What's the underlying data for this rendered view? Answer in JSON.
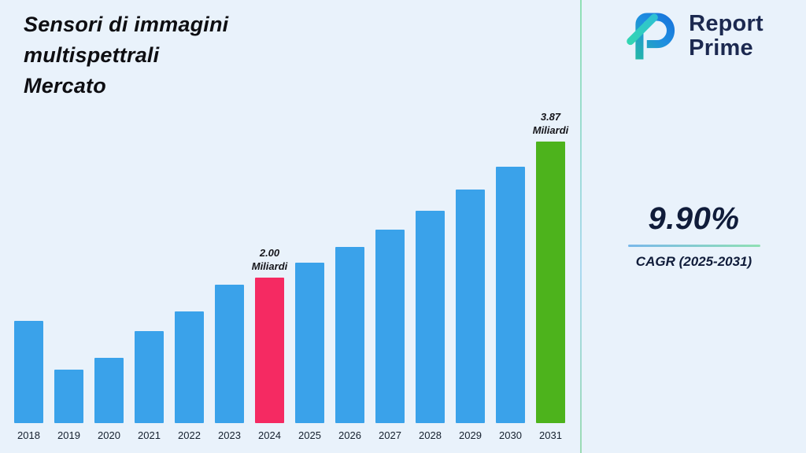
{
  "title": "Sensori di immagini multispettrali Mercato",
  "logo": {
    "name": "Report Prime",
    "line1": "Report",
    "line2": "Prime"
  },
  "stat": {
    "value": "9.90%",
    "label": "CAGR (2025-2031)"
  },
  "chart_data": {
    "type": "bar",
    "title": "Sensori di immagini multispettrali Mercato",
    "unit": "Miliardi",
    "categories": [
      "2018",
      "2019",
      "2020",
      "2021",
      "2022",
      "2023",
      "2024",
      "2025",
      "2026",
      "2027",
      "2028",
      "2029",
      "2030",
      "2031"
    ],
    "values": [
      1.4,
      0.74,
      0.9,
      1.26,
      1.53,
      1.9,
      2.0,
      2.2,
      2.42,
      2.66,
      2.92,
      3.21,
      3.52,
      3.87
    ],
    "ylim": [
      0,
      3.87
    ],
    "grid": false,
    "legend": "none",
    "bar_colors": {
      "default": "#3aa2ea",
      "2024": "#f52a62",
      "2031": "#4db31c"
    },
    "annotations": [
      {
        "category": "2024",
        "label": "2.00\nMiliardi"
      },
      {
        "category": "2031",
        "label": "3.87\nMiliardi"
      }
    ]
  }
}
